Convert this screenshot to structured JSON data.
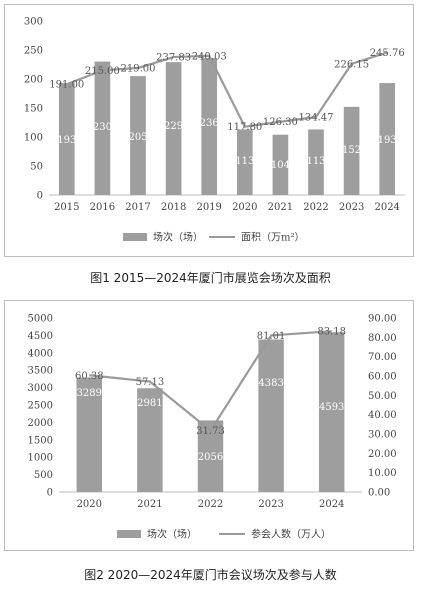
{
  "captions": {
    "fig1": "图1  2015—2024年厦门市展览会场次及面积",
    "fig2": "图2  2020—2024年厦门市会议场次及参与人数"
  },
  "colors": {
    "bar": "#9e9e9e",
    "line": "#9a9a9a",
    "axis": "#bdbdbd",
    "text": "#444444"
  },
  "chart_data": [
    {
      "type": "bar",
      "categories": [
        "2015",
        "2016",
        "2017",
        "2018",
        "2019",
        "2020",
        "2021",
        "2022",
        "2023",
        "2024"
      ],
      "series": [
        {
          "name": "场次（场）",
          "type": "bar",
          "values": [
            193,
            230,
            205,
            229,
            236,
            113,
            104,
            113,
            152,
            193
          ],
          "labels": [
            "193",
            "230",
            "205",
            "229",
            "236",
            "113",
            "104",
            "113",
            "152",
            "193"
          ]
        },
        {
          "name": "面积（万m²）",
          "type": "line",
          "values": [
            191.0,
            215.0,
            219.0,
            237.83,
            240.03,
            117.8,
            126.3,
            134.47,
            226.15,
            245.76
          ],
          "labels": [
            "191.00",
            "215.00",
            "219.00",
            "237.83",
            "240.03",
            "117.80",
            "126.30",
            "134.47",
            "226.15",
            "245.76"
          ]
        }
      ],
      "y_ticks": [
        "0",
        "50",
        "100",
        "150",
        "200",
        "250",
        "300"
      ],
      "ylim": [
        0,
        300
      ],
      "grid": false,
      "legend": "bottom"
    },
    {
      "type": "bar",
      "categories": [
        "2020",
        "2021",
        "2022",
        "2023",
        "2024"
      ],
      "series": [
        {
          "name": "场次（场）",
          "type": "bar",
          "axis": "left",
          "values": [
            3289,
            2981,
            2056,
            4383,
            4593
          ],
          "labels": [
            "3289",
            "2981",
            "2056",
            "4383",
            "4593"
          ]
        },
        {
          "name": "参会人数（万人）",
          "type": "line",
          "axis": "right",
          "values": [
            60.38,
            57.13,
            31.73,
            81.01,
            83.18
          ],
          "labels": [
            "60.38",
            "57.13",
            "31.73",
            "81.01",
            "83.18"
          ]
        }
      ],
      "y_ticks": [
        "0",
        "500",
        "1000",
        "1500",
        "2000",
        "2500",
        "3000",
        "3500",
        "4000",
        "4500",
        "5000"
      ],
      "ylim": [
        0,
        5000
      ],
      "y2_ticks": [
        "0.00",
        "10.00",
        "20.00",
        "30.00",
        "40.00",
        "50.00",
        "60.00",
        "70.00",
        "80.00",
        "90.00"
      ],
      "y2lim": [
        0,
        90
      ],
      "grid": false,
      "legend": "bottom"
    }
  ]
}
